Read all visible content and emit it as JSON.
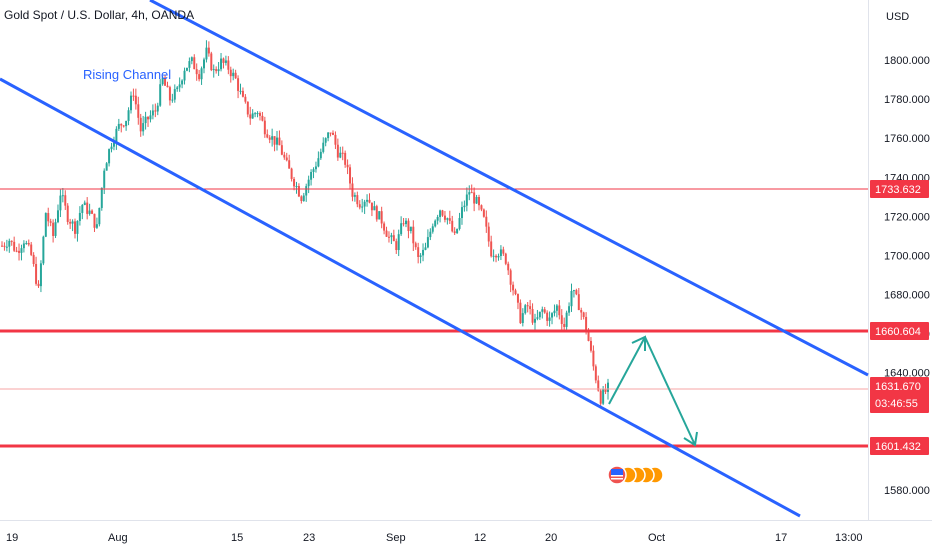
{
  "header": {
    "symbol_title": "Gold Spot / U.S. Dollar, 4h, OANDA"
  },
  "chart_data": {
    "type": "candlestick",
    "title": "Gold Spot / U.S. Dollar, 4h, OANDA",
    "currency_label": "USD",
    "y_ticks": [
      "1800.000",
      "1780.000",
      "1760.000",
      "1740.000",
      "1720.000",
      "1700.000",
      "1680.000",
      "1660.000",
      "1640.000",
      "1580.000"
    ],
    "ylim": [
      1571,
      1833
    ],
    "x_ticks": [
      "19",
      "Aug",
      "15",
      "23",
      "Sep",
      "12",
      "20",
      "Oct",
      "17",
      "13:00"
    ],
    "price_badges": [
      {
        "value": "1733.632",
        "color": "#f23645"
      },
      {
        "value": "1660.604",
        "color": "#f23645"
      },
      {
        "value": "1601.432",
        "color": "#f23645"
      }
    ],
    "current_price": {
      "value": "1631.670",
      "countdown": "03:46:55",
      "color": "#f23645"
    },
    "horizontal_levels": [
      1733.632,
      1660.604,
      1601.432
    ],
    "annotation_label": "Rising Channel",
    "channel_color": "#2962ff",
    "projection_color": "#26a69a",
    "bullish_color": "#26a69a",
    "bearish_color": "#ef5350",
    "price_path": [
      1705,
      1708,
      1702,
      1708,
      1700,
      1682,
      1722,
      1710,
      1732,
      1720,
      1714,
      1726,
      1722,
      1714,
      1745,
      1758,
      1766,
      1770,
      1784,
      1764,
      1770,
      1774,
      1790,
      1780,
      1784,
      1796,
      1799,
      1793,
      1804,
      1794,
      1799,
      1796,
      1790,
      1779,
      1771,
      1774,
      1765,
      1760,
      1756,
      1746,
      1738,
      1730,
      1739,
      1747,
      1756,
      1764,
      1753,
      1748,
      1732,
      1727,
      1730,
      1723,
      1718,
      1709,
      1705,
      1718,
      1712,
      1698,
      1703,
      1717,
      1724,
      1719,
      1709,
      1723,
      1733,
      1727,
      1718,
      1702,
      1702,
      1698,
      1683,
      1668,
      1674,
      1665,
      1672,
      1667,
      1674,
      1664,
      1682,
      1675,
      1663,
      1643,
      1627,
      1632
    ]
  }
}
